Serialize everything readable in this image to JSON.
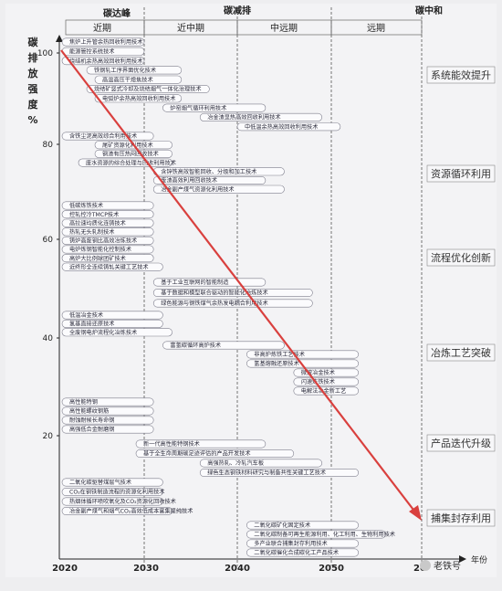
{
  "header": {
    "phases": [
      "碳达峰",
      "碳减排",
      "碳中和"
    ],
    "periods": [
      "近期",
      "近中期",
      "中远期",
      "远期"
    ]
  },
  "y_axis": {
    "label_chars": [
      "碳",
      "排",
      "放",
      "强",
      "度",
      "%"
    ],
    "ticks": [
      "100",
      "80",
      "60",
      "40",
      "20"
    ]
  },
  "x_axis": {
    "years": [
      "2020",
      "2030",
      "2040",
      "2050",
      "20"
    ],
    "end_label": "年份"
  },
  "categories": [
    "系统能效提升",
    "资源循环利用",
    "流程优化创新",
    "冶炼工艺突破",
    "产品迭代升级",
    "捕集封存利用"
  ],
  "technologies": [
    {
      "label": "焦炉上升管余热回收利用技术",
      "start": 2020,
      "end": 2030
    },
    {
      "label": "能源管控系统技术",
      "start": 2020,
      "end": 2030
    },
    {
      "label": "烧结机余热高效回收利用技术",
      "start": 2020,
      "end": 2030
    },
    {
      "label": "铁钢轧工序界面优化技术",
      "start": 2023,
      "end": 2034
    },
    {
      "label": "高温高压干熄焦技术",
      "start": 2024,
      "end": 2034
    },
    {
      "label": "烧结矿竖式冷却及烧结烟气一体化治理技术",
      "start": 2023,
      "end": 2037
    },
    {
      "label": "电弧炉余热高效回收利用技术",
      "start": 2024,
      "end": 2034
    },
    {
      "label": "炉窑烟气循环利用技术",
      "start": 2032,
      "end": 2043
    },
    {
      "label": "冶金渣显热高效回收利用技术",
      "start": 2036,
      "end": 2049
    },
    {
      "label": "中低温余热高效回收利用技术",
      "start": 2040,
      "end": 2051
    },
    {
      "label": "含铁尘泥高效综合利用技术",
      "start": 2020,
      "end": 2031
    },
    {
      "label": "尾矿资源化利用技术",
      "start": 2024,
      "end": 2033
    },
    {
      "label": "钢渣有压热闷回收技术",
      "start": 2024,
      "end": 2033
    },
    {
      "label": "废水资源的综合处理与回收利用技术",
      "start": 2022,
      "end": 2033
    },
    {
      "label": "含锌铁高效智能回收、分级和加工技术",
      "start": 2031,
      "end": 2045
    },
    {
      "label": "废渣高效利用回收技术",
      "start": 2031,
      "end": 2043
    },
    {
      "label": "冶金副产煤气资源化利用技术",
      "start": 2031,
      "end": 2045
    },
    {
      "label": "低碳炼铁技术",
      "start": 2020,
      "end": 2031
    },
    {
      "label": "控轧控冷TMCP技术",
      "start": 2020,
      "end": 2031
    },
    {
      "label": "高拉速均质化连铸技术",
      "start": 2020,
      "end": 2031
    },
    {
      "label": "热轧无头轧制技术",
      "start": 2020,
      "end": 2031
    },
    {
      "label": "铸炉高废钢比高效冶炼技术",
      "start": 2020,
      "end": 2031
    },
    {
      "label": "电炉炼钢智能化控制技术",
      "start": 2020,
      "end": 2031
    },
    {
      "label": "高炉大比例球团矿技术",
      "start": 2020,
      "end": 2031
    },
    {
      "label": "近终形全连续铸轧关键工艺技术",
      "start": 2020,
      "end": 2032
    },
    {
      "label": "基于工业互联网的智能制造",
      "start": 2031,
      "end": 2043
    },
    {
      "label": "基于数据和模型联合驱动的智能化冶炼技术",
      "start": 2031,
      "end": 2048
    },
    {
      "label": "绿色能源与钢铁煤气余热发电耦合利用技术",
      "start": 2031,
      "end": 2048
    },
    {
      "label": "低温冶金技术",
      "start": 2020,
      "end": 2032
    },
    {
      "label": "氢基直接还原技术",
      "start": 2020,
      "end": 2032
    },
    {
      "label": "全废钢电炉流程化冶炼技术",
      "start": 2020,
      "end": 2033
    },
    {
      "label": "富氢碳循环高炉技术",
      "start": 2032,
      "end": 2045
    },
    {
      "label": "非高炉炼铁工艺技术",
      "start": 2041,
      "end": 2053
    },
    {
      "label": "氢基熔融还原技术",
      "start": 2041,
      "end": 2053
    },
    {
      "label": "微波冶金技术",
      "start": 2046,
      "end": 2053
    },
    {
      "label": "闪速炼铁技术",
      "start": 2046,
      "end": 2053
    },
    {
      "label": "电解法冶金新工艺",
      "start": 2046,
      "end": 2053
    },
    {
      "label": "高性能特钢",
      "start": 2020,
      "end": 2031
    },
    {
      "label": "高性能螺纹钢筋",
      "start": 2020,
      "end": 2031
    },
    {
      "label": "耐蚀耐候长寿命钢",
      "start": 2020,
      "end": 2031
    },
    {
      "label": "高强低合金耐磨钢",
      "start": 2020,
      "end": 2031
    },
    {
      "label": "新一代高性能特钢技术",
      "start": 2029,
      "end": 2043
    },
    {
      "label": "基于全生命周期碳足迹评估的产品开发技术",
      "start": 2029,
      "end": 2046
    },
    {
      "label": "高强热轧、冷轧汽车板",
      "start": 2036,
      "end": 2049
    },
    {
      "label": "绿色生态钢铁材料研究与制备共性关键工艺技术",
      "start": 2036,
      "end": 2053
    },
    {
      "label": "二氧化碳驱替煤层气技术",
      "start": 2020,
      "end": 2032
    },
    {
      "label": "CO₂在钢铁制造流程的资源化利用技术",
      "start": 2020,
      "end": 2032
    },
    {
      "label": "热烟体循环喷吹氧化及CO₂资源化回收技术",
      "start": 2020,
      "end": 2032
    },
    {
      "label": "冶金副产煤气和烟气CO₂高效低成本富集提纯技术",
      "start": 2020,
      "end": 2033
    },
    {
      "label": "二氧化碳矿化固定技术",
      "start": 2041,
      "end": 2053
    },
    {
      "label": "二氧化碳制备可再生能源利用、化工利用、生物利用技术",
      "start": 2041,
      "end": 2056
    },
    {
      "label": "多产业联合捕集封存利用技术",
      "start": 2041,
      "end": 2053
    },
    {
      "label": "二氧化碳催化合成碳化工产品技术",
      "start": 2041,
      "end": 2053
    }
  ],
  "watermark": {
    "text": "老铁号"
  }
}
